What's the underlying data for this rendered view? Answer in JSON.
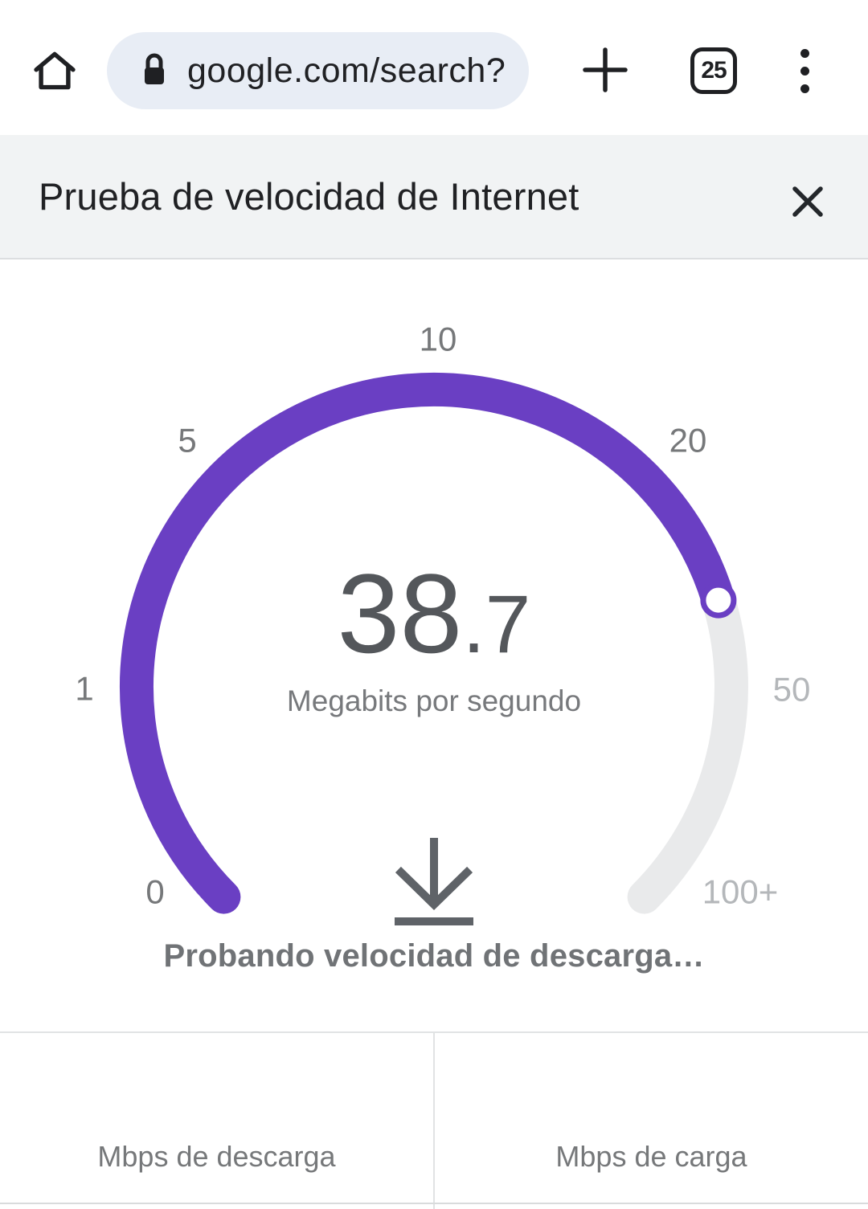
{
  "browser": {
    "url": "google.com/search?",
    "tab_count": "25"
  },
  "panel": {
    "title": "Prueba de velocidad de Internet"
  },
  "chart_data": {
    "type": "gauge",
    "title": "Prueba de velocidad de Internet",
    "value": 38.7,
    "value_integer": "38",
    "value_fraction": ".7",
    "unit_label": "Megabits por segundo",
    "scale_stops": [
      0,
      1,
      5,
      10,
      20,
      50,
      100
    ],
    "scale_labels": [
      {
        "text": "0",
        "muted": false
      },
      {
        "text": "1",
        "muted": false
      },
      {
        "text": "5",
        "muted": false
      },
      {
        "text": "10",
        "muted": false
      },
      {
        "text": "20",
        "muted": false
      },
      {
        "text": "50",
        "muted": true
      },
      {
        "text": "100+",
        "muted": true
      }
    ],
    "start_angle_deg": 225,
    "sweep_deg": 270,
    "colors": {
      "progress": "#6a3fc3",
      "track": "#e9eaeb",
      "thumb_fill": "#ffffff",
      "thumb_ring": "#6a3fc3"
    }
  },
  "status": {
    "text": "Probando velocidad de descarga…"
  },
  "footer": {
    "download_label": "Mbps de descarga",
    "upload_label": "Mbps de carga"
  }
}
